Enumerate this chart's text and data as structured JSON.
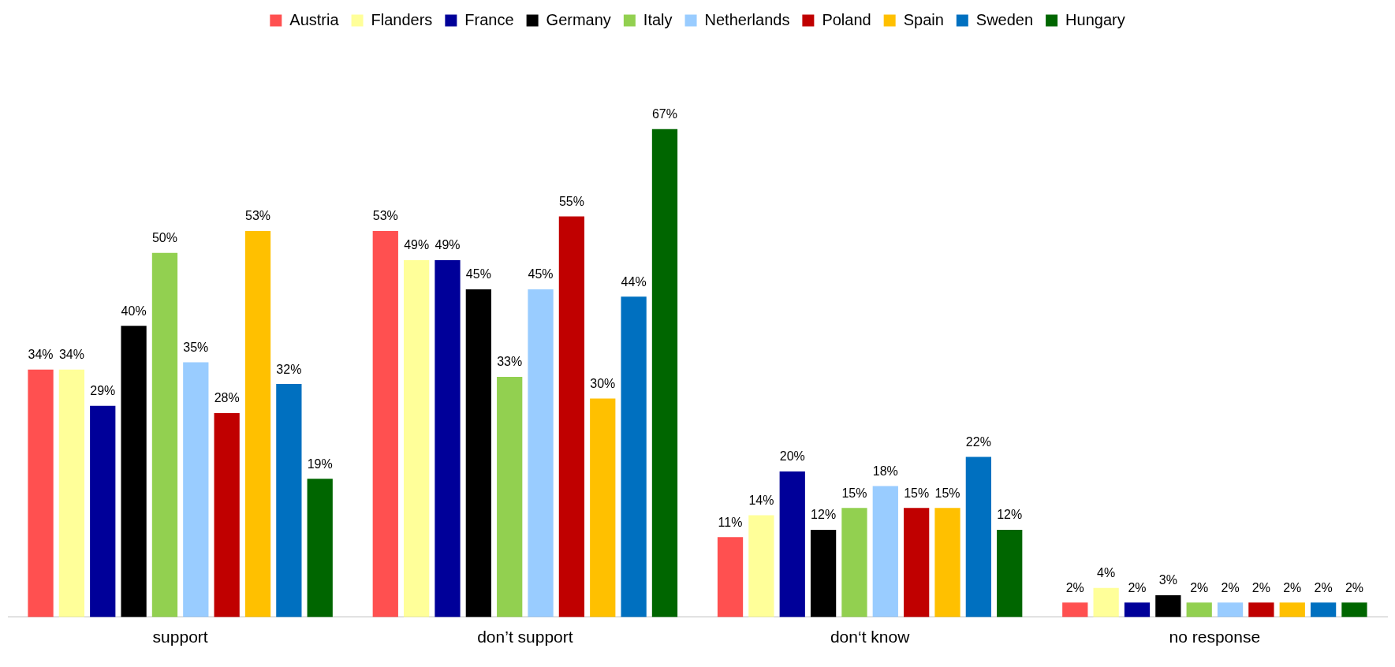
{
  "chart_data": {
    "type": "bar",
    "categories": [
      "support",
      "don’t support",
      "don‘t know",
      "no response"
    ],
    "series": [
      {
        "name": "Austria",
        "color": "#ff5050",
        "values": [
          34,
          53,
          11,
          2
        ],
        "value_labels": [
          "34%",
          "53%",
          "11%",
          "2%"
        ]
      },
      {
        "name": "Flanders",
        "color": "#ffff99",
        "values": [
          34,
          49,
          14,
          4
        ],
        "value_labels": [
          "34%",
          "49%",
          "14%",
          "4%"
        ]
      },
      {
        "name": "France",
        "color": "#000099",
        "values": [
          29,
          49,
          20,
          2
        ],
        "value_labels": [
          "29%",
          "49%",
          "20%",
          "2%"
        ]
      },
      {
        "name": "Germany",
        "color": "#000000",
        "values": [
          40,
          45,
          12,
          3
        ],
        "value_labels": [
          "40%",
          "45%",
          "12%",
          "3%"
        ]
      },
      {
        "name": "Italy",
        "color": "#92d050",
        "values": [
          50,
          33,
          15,
          2
        ],
        "value_labels": [
          "50%",
          "33%",
          "15%",
          "2%"
        ]
      },
      {
        "name": "Netherlands",
        "color": "#99ccff",
        "values": [
          35,
          45,
          18,
          2
        ],
        "value_labels": [
          "35%",
          "45%",
          "18%",
          "2%"
        ]
      },
      {
        "name": "Poland",
        "color": "#c00000",
        "values": [
          28,
          55,
          15,
          2
        ],
        "value_labels": [
          "28%",
          "55%",
          "15%",
          "2%"
        ]
      },
      {
        "name": "Spain",
        "color": "#ffc000",
        "values": [
          53,
          30,
          15,
          2
        ],
        "value_labels": [
          "53%",
          "30%",
          "15%",
          "2%"
        ]
      },
      {
        "name": "Sweden",
        "color": "#0070c0",
        "values": [
          32,
          44,
          22,
          2
        ],
        "value_labels": [
          "32%",
          "44%",
          "22%",
          "2%"
        ]
      },
      {
        "name": "Hungary",
        "color": "#006600",
        "values": [
          19,
          67,
          12,
          2
        ],
        "value_labels": [
          "19%",
          "67%",
          "12%",
          "2%"
        ]
      }
    ],
    "grid": false,
    "legend": "top"
  }
}
